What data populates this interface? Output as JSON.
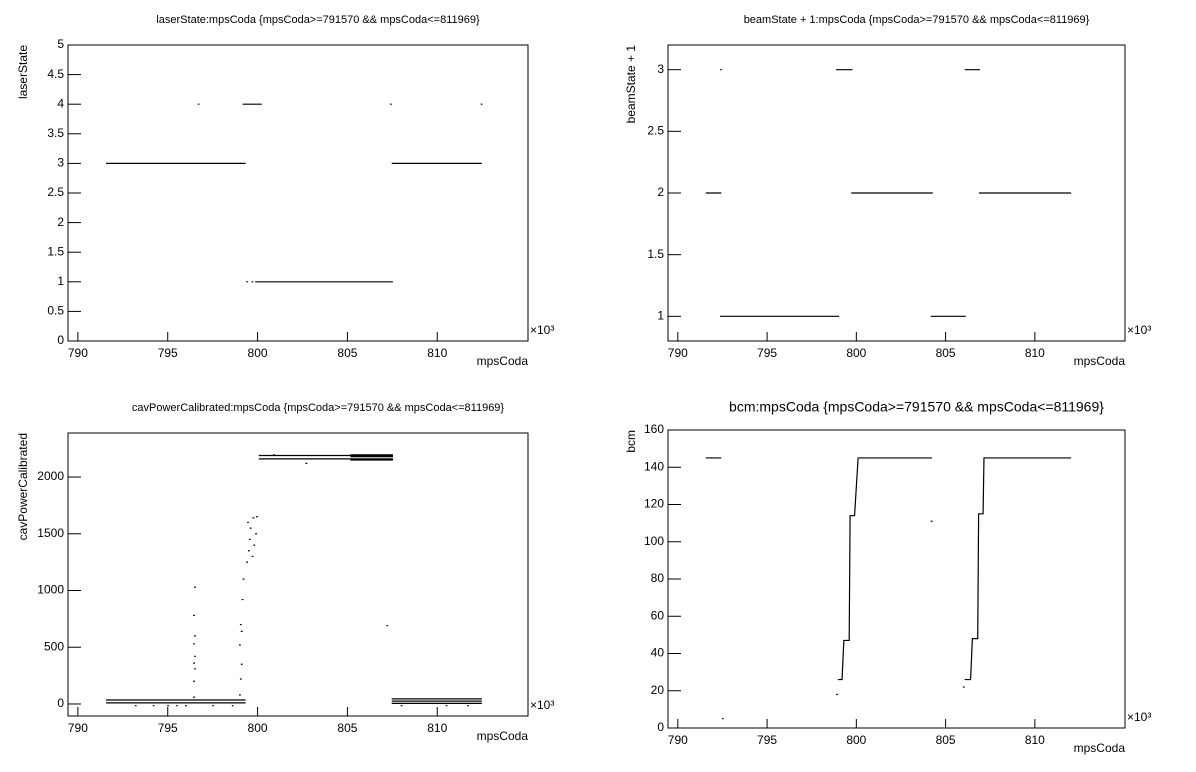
{
  "chart_data": [
    {
      "type": "line",
      "title": "laserState:mpsCoda {mpsCoda>=791570 && mpsCoda<=811969}",
      "x_label": "mpsCoda",
      "y_label": "laserState",
      "x_multiplier": "×10³",
      "xlim": [
        789.45,
        815.05
      ],
      "xticks": [
        790,
        795,
        800,
        805,
        810
      ],
      "ylim": [
        0,
        5
      ],
      "yticks": [
        0,
        0.5,
        1,
        1.5,
        2,
        2.5,
        3,
        3.5,
        4,
        4.5,
        5
      ],
      "series": [
        {
          "name": "laserState",
          "color": "#000000",
          "x": [
            791.6,
            799.3,
            null,
            796.7,
            null,
            799.2,
            800.2,
            null,
            799.4,
            null,
            799.7,
            null,
            799.9,
            807.5,
            null,
            807.4,
            null,
            807.5,
            812.45,
            null,
            812.45
          ],
          "values": [
            3,
            3,
            null,
            4,
            null,
            4,
            4,
            null,
            1,
            null,
            1,
            null,
            1,
            1,
            null,
            4,
            null,
            3,
            3,
            null,
            4
          ]
        }
      ]
    },
    {
      "type": "line",
      "title": "beamState + 1:mpsCoda {mpsCoda>=791570 && mpsCoda<=811969}",
      "x_label": "mpsCoda",
      "y_label": "beamState + 1",
      "x_multiplier": "×10³",
      "xlim": [
        789.45,
        815.05
      ],
      "xticks": [
        790,
        795,
        800,
        805,
        810
      ],
      "ylim": [
        0.8,
        3.2
      ],
      "yticks": [
        1,
        1.5,
        2,
        2.5,
        3
      ],
      "series": [
        {
          "name": "beamState + 1",
          "color": "#000000",
          "x": [
            791.6,
            792.4,
            null,
            792.4,
            null,
            792.4,
            799.0,
            null,
            798.9,
            799.75,
            null,
            799.75,
            804.25,
            null,
            804.2,
            806.1,
            null,
            806.1,
            806.9,
            null,
            806.9,
            812.0
          ],
          "values": [
            2,
            2,
            null,
            3,
            null,
            1,
            1,
            null,
            3,
            3,
            null,
            2,
            2,
            null,
            1,
            1,
            null,
            3,
            3,
            null,
            2,
            2
          ]
        }
      ]
    },
    {
      "type": "line",
      "title": "cavPowerCalibrated:mpsCoda {mpsCoda>=791570 && mpsCoda<=811969}",
      "x_label": "mpsCoda",
      "y_label": "cavPowerCalibrated",
      "x_multiplier": "×10³",
      "xlim": [
        789.45,
        815.05
      ],
      "xticks": [
        790,
        795,
        800,
        805,
        810
      ],
      "ylim": [
        -106,
        2388
      ],
      "yticks": [
        0,
        500,
        1000,
        1500,
        2000
      ],
      "series": [
        {
          "name": "cavPowerCalibrated",
          "color": "#000000",
          "x": [
            791.6,
            799.3,
            null,
            791.6,
            799.3,
            null,
            807.5,
            812.45,
            null,
            807.5,
            812.45,
            null,
            807.5,
            812.45,
            null,
            800.1,
            807.5,
            null,
            800.1,
            807.5,
            null,
            805.2,
            807.5,
            null,
            805.2,
            807.5,
            null,
            805.2,
            807.5,
            null,
            793.2,
            null,
            794.2,
            null,
            795.0,
            null,
            795.5,
            null,
            796.0,
            null,
            797.5,
            null,
            798.6,
            null,
            808.0,
            null,
            810.5,
            null,
            811.7,
            null,
            800.9,
            null,
            802.7,
            null,
            804.5,
            null,
            807.2,
            null,
            796.45,
            null,
            796.45,
            null,
            796.5,
            null,
            796.45,
            null,
            796.5,
            null,
            796.45,
            null,
            796.5,
            null,
            796.45,
            null,
            796.5,
            null,
            799.0,
            null,
            799.05,
            null,
            799.1,
            null,
            799.0,
            null,
            799.1,
            null,
            799.05,
            null,
            799.15,
            null,
            799.2,
            null,
            799.4,
            null,
            799.45,
            null,
            799.5,
            null,
            799.55,
            null,
            799.6,
            null,
            799.7,
            null,
            799.75,
            null,
            799.8,
            null,
            799.9,
            null,
            799.95
          ],
          "values": [
            35,
            35,
            null,
            10,
            10,
            null,
            45,
            45,
            null,
            25,
            25,
            null,
            5,
            5,
            null,
            2190,
            2190,
            null,
            2160,
            2160,
            null,
            2195,
            2195,
            null,
            2180,
            2180,
            null,
            2150,
            2150,
            null,
            -15,
            null,
            -15,
            null,
            -15,
            null,
            -15,
            null,
            -15,
            null,
            -15,
            null,
            -15,
            null,
            -15,
            null,
            -15,
            null,
            -15,
            null,
            2195,
            null,
            2120,
            null,
            2190,
            null,
            690,
            null,
            60,
            null,
            200,
            null,
            310,
            null,
            360,
            null,
            420,
            null,
            530,
            null,
            600,
            null,
            780,
            null,
            1030,
            null,
            80,
            null,
            220,
            null,
            350,
            null,
            520,
            null,
            640,
            null,
            700,
            null,
            920,
            null,
            1100,
            null,
            1250,
            null,
            1600,
            null,
            1350,
            null,
            1450,
            null,
            1550,
            null,
            1300,
            null,
            1640,
            null,
            1400,
            null,
            1500,
            null,
            1650
          ]
        }
      ]
    },
    {
      "type": "line",
      "title": "bcm:mpsCoda {mpsCoda>=791570 && mpsCoda<=811969}",
      "x_label": "mpsCoda",
      "y_label": "bcm",
      "x_multiplier": "×10³",
      "xlim": [
        789.45,
        815.05
      ],
      "xticks": [
        790,
        795,
        800,
        805,
        810
      ],
      "ylim": [
        0,
        160
      ],
      "yticks": [
        0,
        20,
        40,
        60,
        80,
        100,
        120,
        140,
        160
      ],
      "series": [
        {
          "name": "bcm",
          "color": "#000000",
          "x": [
            791.6,
            792.4,
            null,
            792.5,
            null,
            798.9,
            null,
            799.0,
            799.2,
            799.3,
            799.6,
            799.65,
            799.9,
            800.1,
            804.2,
            null,
            804.2,
            null,
            806.0,
            null,
            806.1,
            806.4,
            806.5,
            806.8,
            806.85,
            807.1,
            807.15,
            812.0
          ],
          "values": [
            145,
            145,
            null,
            5,
            null,
            18,
            null,
            26,
            26,
            47,
            47,
            114,
            114,
            145,
            145,
            null,
            111,
            null,
            22,
            null,
            26,
            26,
            48,
            48,
            115,
            115,
            145,
            145
          ]
        }
      ]
    }
  ]
}
